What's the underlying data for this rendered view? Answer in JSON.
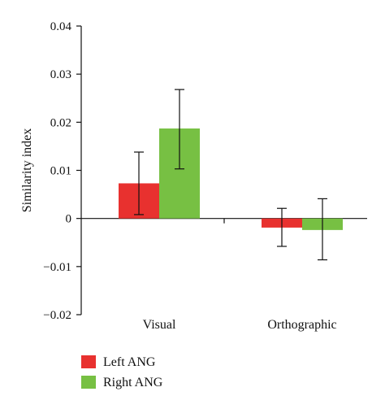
{
  "chart_data": {
    "type": "bar",
    "title": "",
    "xlabel": "",
    "ylabel": "Similarity index",
    "ylim": [
      -0.02,
      0.04
    ],
    "yticks": [
      -0.02,
      -0.01,
      0,
      0.01,
      0.02,
      0.03,
      0.04
    ],
    "ytick_labels": [
      "−0.02",
      "−0.01",
      "0",
      "0.01",
      "0.02",
      "0.03",
      "0.04"
    ],
    "categories": [
      "Visual",
      "Orthographic"
    ],
    "series": [
      {
        "name": "Left ANG",
        "color": "#e8312f",
        "values": [
          0.0073,
          -0.0019
        ],
        "error_low": [
          0.0008,
          -0.0058
        ],
        "error_high": [
          0.0138,
          0.0021
        ]
      },
      {
        "name": "Right ANG",
        "color": "#77c043",
        "values": [
          0.0187,
          -0.0024
        ],
        "error_low": [
          0.0103,
          -0.0086
        ],
        "error_high": [
          0.0268,
          0.0041
        ]
      }
    ],
    "grid": false,
    "legend_position": "bottom-left"
  }
}
